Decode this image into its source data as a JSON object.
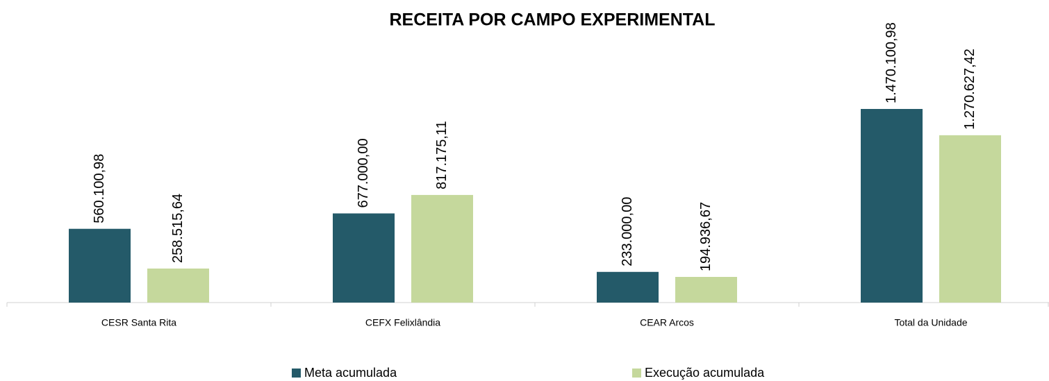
{
  "chart_data": {
    "type": "bar",
    "title": "RECEITA POR CAMPO EXPERIMENTAL",
    "categories": [
      "CESR Santa Rita",
      "CEFX Felixlândia",
      "CEAR Arcos",
      "Total da Unidade"
    ],
    "series": [
      {
        "name": "Meta acumulada",
        "color": "#245a69",
        "values": [
          560100.98,
          677000.0,
          233000.0,
          1470100.98
        ],
        "value_labels": [
          "560.100,98",
          "677.000,00",
          "233.000,00",
          "1.470.100,98"
        ]
      },
      {
        "name": "Execução acumulada",
        "color": "#c5d89c",
        "values": [
          258515.64,
          817175.11,
          194936.67,
          1270627.42
        ],
        "value_labels": [
          "258.515,64",
          "817.175,11",
          "194.936,67",
          "1.270.627,42"
        ]
      }
    ]
  }
}
